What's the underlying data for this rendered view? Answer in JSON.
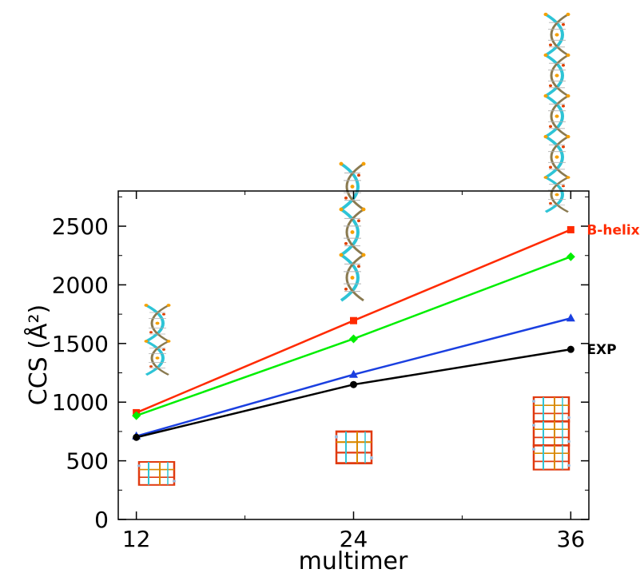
{
  "chart_data": {
    "type": "line",
    "xlabel": "multimer",
    "ylabel": "CCS (Å²)",
    "x": [
      12,
      24,
      36
    ],
    "xlim": [
      11,
      37
    ],
    "ylim": [
      0,
      2800
    ],
    "xticks": [
      "12",
      "24",
      "36"
    ],
    "yticks": [
      "0",
      "500",
      "1000",
      "1500",
      "2000",
      "2500"
    ],
    "grid": false,
    "series": [
      {
        "name": "B-helix",
        "color": "#ff2a00",
        "marker": "square",
        "values": [
          910,
          1695,
          2470
        ],
        "label": "B-helix"
      },
      {
        "color": "#00ee00",
        "marker": "diamond",
        "values": [
          885,
          1540,
          2240
        ]
      },
      {
        "color": "#1a3fe0",
        "marker": "triangle",
        "values": [
          710,
          1235,
          1715
        ]
      },
      {
        "name": "EXP",
        "color": "#000000",
        "marker": "circle",
        "values": [
          700,
          1150,
          1450
        ],
        "label": "EXP"
      }
    ]
  }
}
